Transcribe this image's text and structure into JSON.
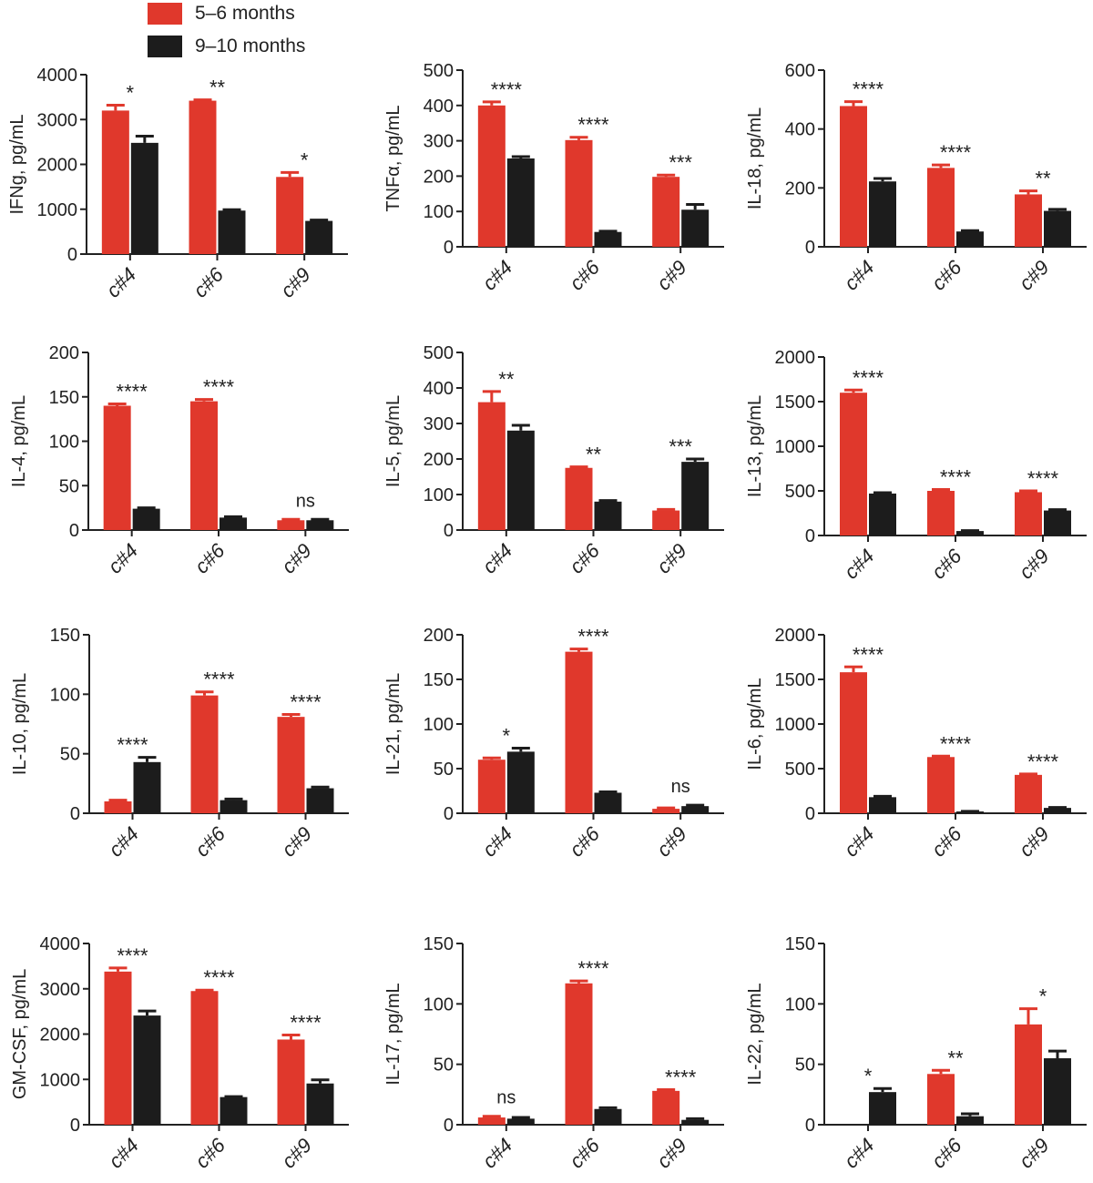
{
  "colors": {
    "series1": "#e0382c",
    "series2": "#1c1c1c",
    "axis": "#222222",
    "text": "#222222"
  },
  "legend": [
    {
      "label": "5–6 months",
      "color": "#e0382c"
    },
    {
      "label": "9–10 months",
      "color": "#1c1c1c"
    }
  ],
  "chart_data": [
    {
      "type": "bar",
      "title": "",
      "ylabel": "IFNg, pg/mL",
      "categories": [
        "c#4",
        "c#6",
        "c#9"
      ],
      "ylim": [
        0,
        4000
      ],
      "yticks": [
        0,
        1000,
        2000,
        3000,
        4000
      ],
      "series": [
        {
          "name": "5–6 months",
          "values": [
            3200,
            3420,
            1720
          ],
          "errors": [
            120,
            20,
            100
          ]
        },
        {
          "name": "9–10 months",
          "values": [
            2480,
            970,
            740
          ],
          "errors": [
            150,
            20,
            20
          ]
        }
      ],
      "significance": [
        "*",
        "**",
        "*"
      ]
    },
    {
      "type": "bar",
      "title": "",
      "ylabel": "TNFα, pg/mL",
      "categories": [
        "c#4",
        "c#6",
        "c#9"
      ],
      "ylim": [
        0,
        500
      ],
      "yticks": [
        0,
        100,
        200,
        300,
        400,
        500
      ],
      "series": [
        {
          "name": "5–6 months",
          "values": [
            400,
            302,
            198
          ],
          "errors": [
            10,
            8,
            5
          ]
        },
        {
          "name": "9–10 months",
          "values": [
            250,
            42,
            105
          ],
          "errors": [
            5,
            2,
            15
          ]
        }
      ],
      "significance": [
        "****",
        "****",
        "***"
      ]
    },
    {
      "type": "bar",
      "title": "",
      "ylabel": "IL-18, pg/mL",
      "categories": [
        "c#4",
        "c#6",
        "c#9"
      ],
      "ylim": [
        0,
        600
      ],
      "yticks": [
        0,
        200,
        400,
        600
      ],
      "series": [
        {
          "name": "5–6 months",
          "values": [
            478,
            268,
            178
          ],
          "errors": [
            15,
            10,
            12
          ]
        },
        {
          "name": "9–10 months",
          "values": [
            222,
            52,
            122
          ],
          "errors": [
            10,
            3,
            5
          ]
        }
      ],
      "significance": [
        "****",
        "****",
        "**"
      ]
    },
    {
      "type": "bar",
      "title": "",
      "ylabel": "IL-4, pg/mL",
      "categories": [
        "c#4",
        "c#6",
        "c#9"
      ],
      "ylim": [
        0,
        200
      ],
      "yticks": [
        0,
        50,
        100,
        150,
        200
      ],
      "series": [
        {
          "name": "5–6 months",
          "values": [
            140,
            145,
            11
          ],
          "errors": [
            2,
            2,
            1
          ]
        },
        {
          "name": "9–10 months",
          "values": [
            24,
            14,
            11
          ],
          "errors": [
            1,
            1,
            1
          ]
        }
      ],
      "significance": [
        "****",
        "****",
        "ns"
      ]
    },
    {
      "type": "bar",
      "title": "",
      "ylabel": "IL-5, pg/mL",
      "categories": [
        "c#4",
        "c#6",
        "c#9"
      ],
      "ylim": [
        0,
        500
      ],
      "yticks": [
        0,
        100,
        200,
        300,
        400,
        500
      ],
      "series": [
        {
          "name": "5–6 months",
          "values": [
            360,
            175,
            55
          ],
          "errors": [
            30,
            3,
            3
          ]
        },
        {
          "name": "9–10 months",
          "values": [
            280,
            80,
            192
          ],
          "errors": [
            15,
            3,
            8
          ]
        }
      ],
      "significance": [
        "**",
        "**",
        "***"
      ]
    },
    {
      "type": "bar",
      "title": "",
      "ylabel": "IL-13, pg/mL",
      "categories": [
        "c#4",
        "c#6",
        "c#9"
      ],
      "ylim": [
        0,
        2000
      ],
      "yticks": [
        0,
        500,
        1000,
        1500,
        2000
      ],
      "series": [
        {
          "name": "5–6 months",
          "values": [
            1600,
            500,
            485
          ],
          "errors": [
            30,
            15,
            15
          ]
        },
        {
          "name": "9–10 months",
          "values": [
            470,
            50,
            280
          ],
          "errors": [
            10,
            5,
            10
          ]
        }
      ],
      "significance": [
        "****",
        "****",
        "****"
      ]
    },
    {
      "type": "bar",
      "title": "",
      "ylabel": "IL-10, pg/mL",
      "categories": [
        "c#4",
        "c#6",
        "c#9"
      ],
      "ylim": [
        0,
        150
      ],
      "yticks": [
        0,
        50,
        100,
        150
      ],
      "series": [
        {
          "name": "5–6 months",
          "values": [
            10,
            99,
            81
          ],
          "errors": [
            1,
            3,
            2
          ]
        },
        {
          "name": "9–10 months",
          "values": [
            43,
            11,
            21
          ],
          "errors": [
            4,
            1,
            1
          ]
        }
      ],
      "significance": [
        "****",
        "****",
        "****"
      ]
    },
    {
      "type": "bar",
      "title": "",
      "ylabel": "IL-21, pg/mL",
      "categories": [
        "c#4",
        "c#6",
        "c#9"
      ],
      "ylim": [
        0,
        200
      ],
      "yticks": [
        0,
        50,
        100,
        150,
        200
      ],
      "series": [
        {
          "name": "5–6 months",
          "values": [
            60,
            181,
            5
          ],
          "errors": [
            2,
            3,
            1
          ]
        },
        {
          "name": "9–10 months",
          "values": [
            69,
            23,
            8
          ],
          "errors": [
            4,
            1,
            1
          ]
        }
      ],
      "significance": [
        "*",
        "****",
        "ns"
      ]
    },
    {
      "type": "bar",
      "title": "",
      "ylabel": "IL-6, pg/mL",
      "categories": [
        "c#4",
        "c#6",
        "c#9"
      ],
      "ylim": [
        0,
        2000
      ],
      "yticks": [
        0,
        500,
        1000,
        1500,
        2000
      ],
      "series": [
        {
          "name": "5–6 months",
          "values": [
            1580,
            630,
            430
          ],
          "errors": [
            60,
            10,
            10
          ]
        },
        {
          "name": "9–10 months",
          "values": [
            180,
            20,
            60
          ],
          "errors": [
            10,
            2,
            5
          ]
        }
      ],
      "significance": [
        "****",
        "****",
        "****"
      ]
    },
    {
      "type": "bar",
      "title": "",
      "ylabel": "GM-CSF, pg/mL",
      "categories": [
        "c#4",
        "c#6",
        "c#9"
      ],
      "ylim": [
        0,
        4000
      ],
      "yticks": [
        0,
        1000,
        2000,
        3000,
        4000
      ],
      "series": [
        {
          "name": "5–6 months",
          "values": [
            3380,
            2950,
            1880
          ],
          "errors": [
            80,
            20,
            100
          ]
        },
        {
          "name": "9–10 months",
          "values": [
            2410,
            610,
            910
          ],
          "errors": [
            100,
            10,
            80
          ]
        }
      ],
      "significance": [
        "****",
        "****",
        "****"
      ]
    },
    {
      "type": "bar",
      "title": "",
      "ylabel": "IL-17, pg/mL",
      "categories": [
        "c#4",
        "c#6",
        "c#9"
      ],
      "ylim": [
        0,
        150
      ],
      "yticks": [
        0,
        50,
        100,
        150
      ],
      "series": [
        {
          "name": "5–6 months",
          "values": [
            6,
            117,
            28
          ],
          "errors": [
            1,
            2,
            1
          ]
        },
        {
          "name": "9–10 months",
          "values": [
            5,
            13,
            4
          ],
          "errors": [
            1,
            1,
            1
          ]
        }
      ],
      "significance": [
        "ns",
        "****",
        "****"
      ]
    },
    {
      "type": "bar",
      "title": "",
      "ylabel": "IL-22, pg/mL",
      "categories": [
        "c#4",
        "c#6",
        "c#9"
      ],
      "ylim": [
        0,
        150
      ],
      "yticks": [
        0,
        50,
        100,
        150
      ],
      "series": [
        {
          "name": "5–6 months",
          "values": [
            0,
            42,
            83
          ],
          "errors": [
            0,
            3,
            13
          ]
        },
        {
          "name": "9–10 months",
          "values": [
            27,
            7,
            55
          ],
          "errors": [
            3,
            2,
            6
          ]
        }
      ],
      "significance": [
        "*",
        "**",
        "*"
      ]
    }
  ]
}
